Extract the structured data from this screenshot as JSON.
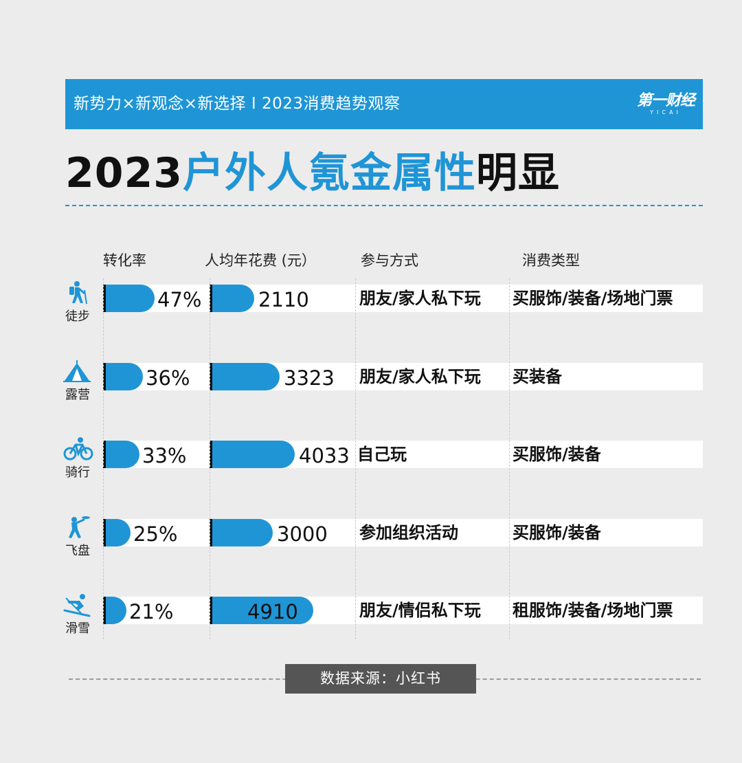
{
  "banner": {
    "text": "新势力×新观念×新选择 I 2023消费趋势观察",
    "logo": "第一财经",
    "logo_sub": "YICAI"
  },
  "title": {
    "prefix": "2023",
    "highlight": "户外人氪金属性",
    "suffix": "明显"
  },
  "headers": {
    "conversion": "转化率",
    "spend": "人均年花费 (元）",
    "mode": "参与方式",
    "type": "消费类型"
  },
  "rows": [
    {
      "activity": "徒步",
      "icon": "hiking-icon",
      "conversion_label": "47%",
      "spend_label": "2110",
      "mode": "朋友/家人私下玩",
      "type": "买服饰/装备/场地门票"
    },
    {
      "activity": "露营",
      "icon": "tent-icon",
      "conversion_label": "36%",
      "spend_label": "3323",
      "mode": "朋友/家人私下玩",
      "type": "买装备"
    },
    {
      "activity": "骑行",
      "icon": "bicycle-icon",
      "conversion_label": "33%",
      "spend_label": "4033",
      "mode": "自己玩",
      "type": "买服饰/装备"
    },
    {
      "activity": "飞盘",
      "icon": "frisbee-icon",
      "conversion_label": "25%",
      "spend_label": "3000",
      "mode": "参加组织活动",
      "type": "买服饰/装备"
    },
    {
      "activity": "滑雪",
      "icon": "skiing-icon",
      "conversion_label": "21%",
      "spend_label": "4910",
      "mode": "朋友/情侣私下玩",
      "type": "租服饰/装备/场地门票"
    }
  ],
  "chart_data": {
    "type": "bar",
    "categories": [
      "徒步",
      "露营",
      "骑行",
      "飞盘",
      "滑雪"
    ],
    "series": [
      {
        "name": "转化率",
        "values": [
          47,
          36,
          33,
          25,
          21
        ],
        "unit": "%"
      },
      {
        "name": "人均年花费 (元）",
        "values": [
          2110,
          3323,
          4033,
          3000,
          4910
        ],
        "unit": "元"
      }
    ],
    "orientation": "horizontal",
    "color": "#1f95d6"
  },
  "source": "数据来源：小红书",
  "colors": {
    "accent": "#1f95d6",
    "text": "#111111",
    "background": "#ececec"
  }
}
